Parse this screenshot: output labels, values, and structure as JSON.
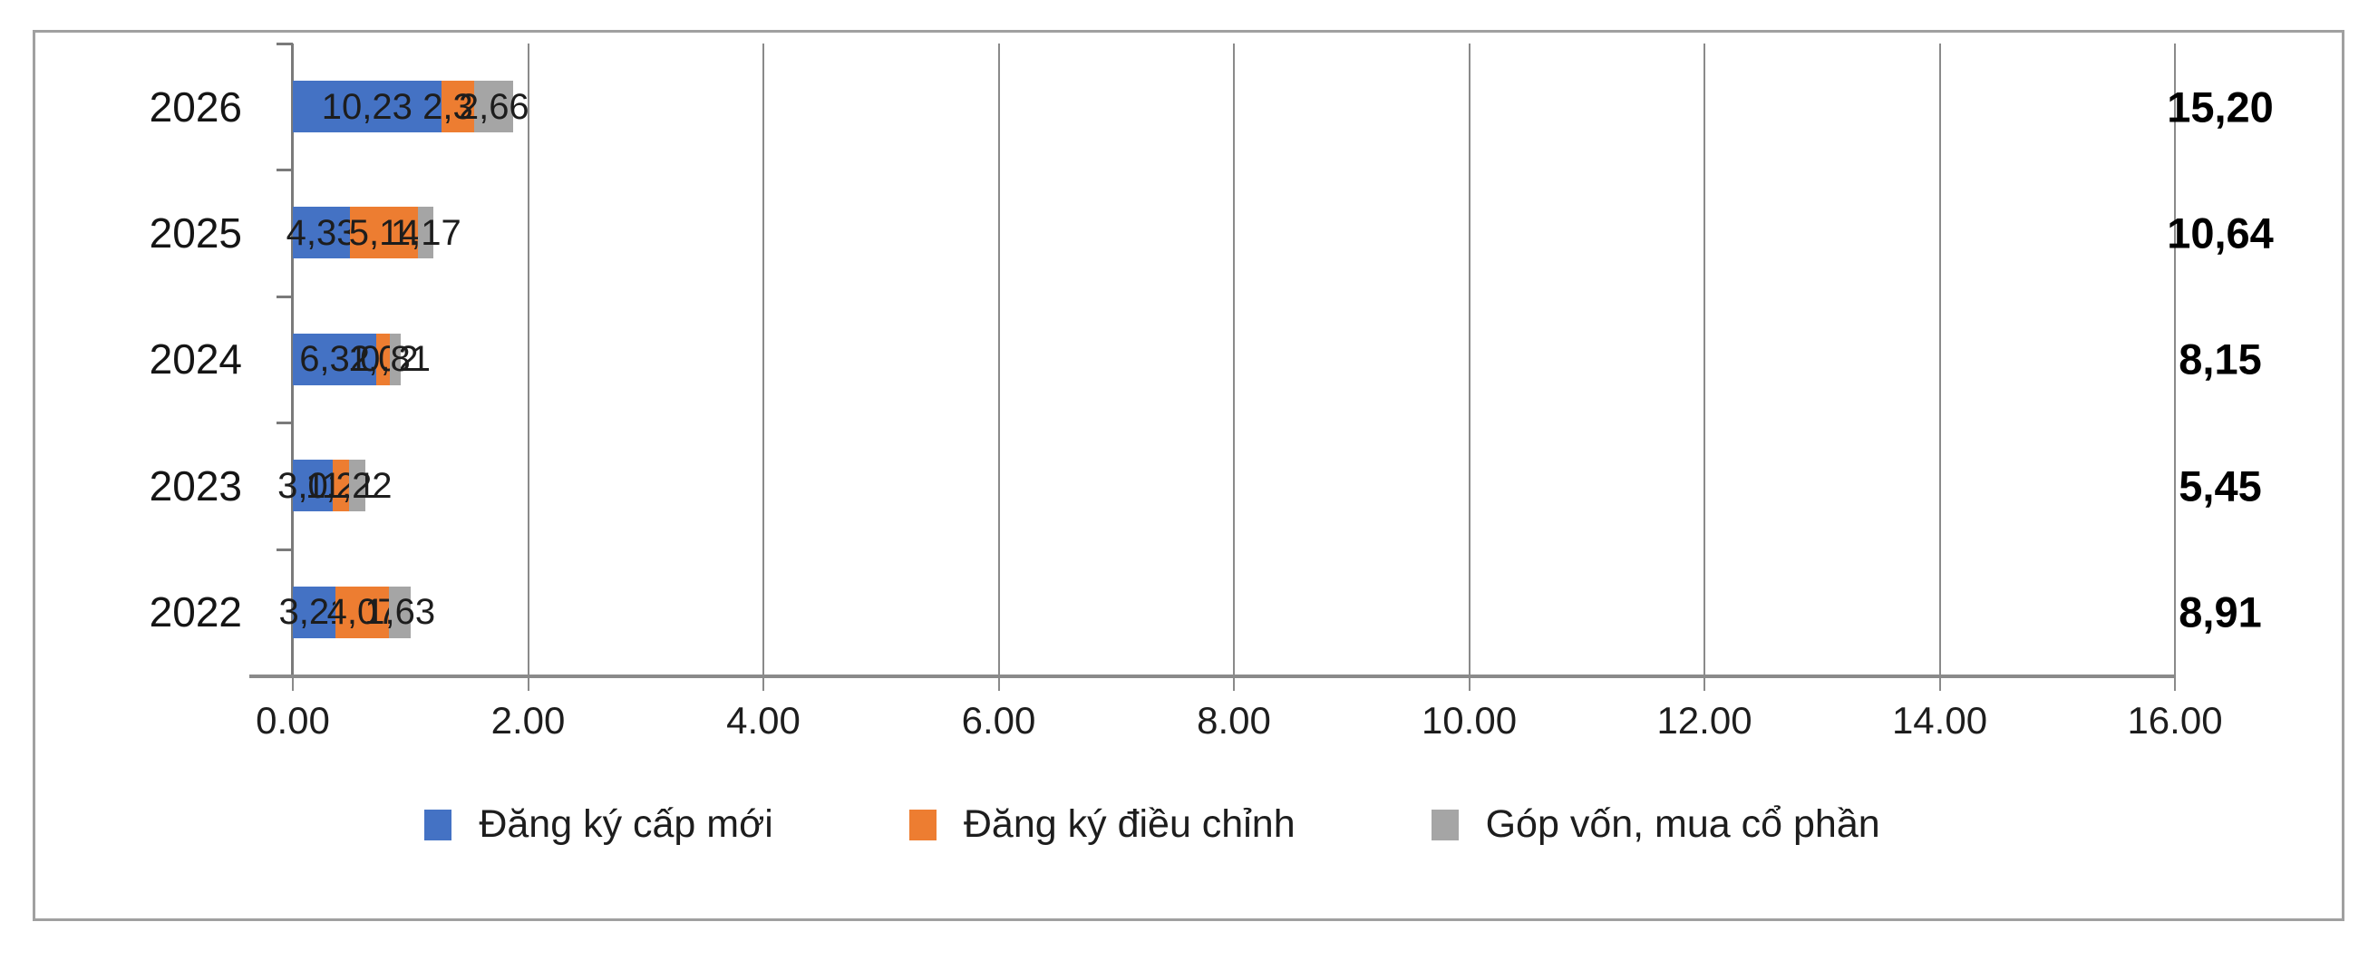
{
  "chart_data": {
    "type": "bar",
    "orientation": "horizontal",
    "stacked": true,
    "grid": true,
    "legend_position": "bottom",
    "categories": [
      "2026",
      "2025",
      "2024",
      "2023",
      "2022"
    ],
    "series": [
      {
        "name": "Đăng ký cấp mới",
        "color": "#4472C4",
        "values": [
          10.23,
          4.33,
          6.32,
          3.02,
          3.21
        ],
        "labels": [
          "10,23",
          "4,33",
          "6,32",
          "3,02",
          "3,21"
        ]
      },
      {
        "name": "Đăng ký điều chỉnh",
        "color": "#ED7D31",
        "values": [
          2.31,
          5.14,
          1.02,
          1.21,
          4.07
        ],
        "labels": [
          "2,31",
          "5,14",
          "1,02",
          "1,21",
          "4,07"
        ]
      },
      {
        "name": "Góp vốn, mua cổ phần",
        "color": "#A5A5A5",
        "values": [
          2.66,
          1.17,
          0.81,
          1.22,
          1.63
        ],
        "labels": [
          "2,66",
          "1,17",
          "0,81",
          "1,22",
          "1,63"
        ]
      }
    ],
    "totals": [
      "15,20",
      "10,64",
      "8,15",
      "5,45",
      "8,91"
    ],
    "x_ticks": [
      "0.00",
      "2.00",
      "4.00",
      "6.00",
      "8.00",
      "10.00",
      "12.00",
      "14.00",
      "16.00"
    ],
    "xlim": [
      0,
      16
    ],
    "xlabel": "",
    "ylabel": "",
    "title": ""
  },
  "colors": {
    "grid": "#8a8a8a",
    "axis": "#7a7a7a",
    "frame_border": "#a0a0a0",
    "segment_label": "#1d1d1d",
    "total_label": "#000000"
  }
}
